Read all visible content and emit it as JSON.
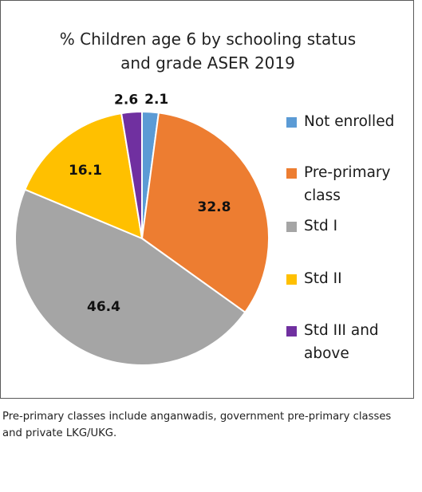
{
  "chart_data": {
    "type": "pie",
    "title": "% Children age 6 by schooling status\nand grade ASER 2019",
    "categories": [
      "Not enrolled",
      "Pre-primary class",
      "Std I",
      "Std II",
      "Std III and above"
    ],
    "values": [
      2.1,
      32.8,
      46.4,
      16.1,
      2.6
    ],
    "value_labels": [
      "2.1",
      "32.8",
      "46.4",
      "16.1",
      "2.6"
    ],
    "colors": [
      "#5b9bd5",
      "#ed7d31",
      "#a5a5a5",
      "#ffc000",
      "#7030a0"
    ],
    "start_angle": "12 o'clock",
    "direction": "clockwise",
    "legend_position": "right"
  },
  "legend": {
    "items": [
      {
        "label": "Not enrolled",
        "color": "#5b9bd5"
      },
      {
        "label": "Pre-primary\nclass",
        "color": "#ed7d31"
      },
      {
        "label": "Std I",
        "color": "#a5a5a5"
      },
      {
        "label": "Std II",
        "color": "#ffc000"
      },
      {
        "label": "Std III and\nabove",
        "color": "#7030a0"
      }
    ]
  },
  "footnote": "Pre-primary classes include anganwadis, government pre-primary classes and private LKG/UKG."
}
